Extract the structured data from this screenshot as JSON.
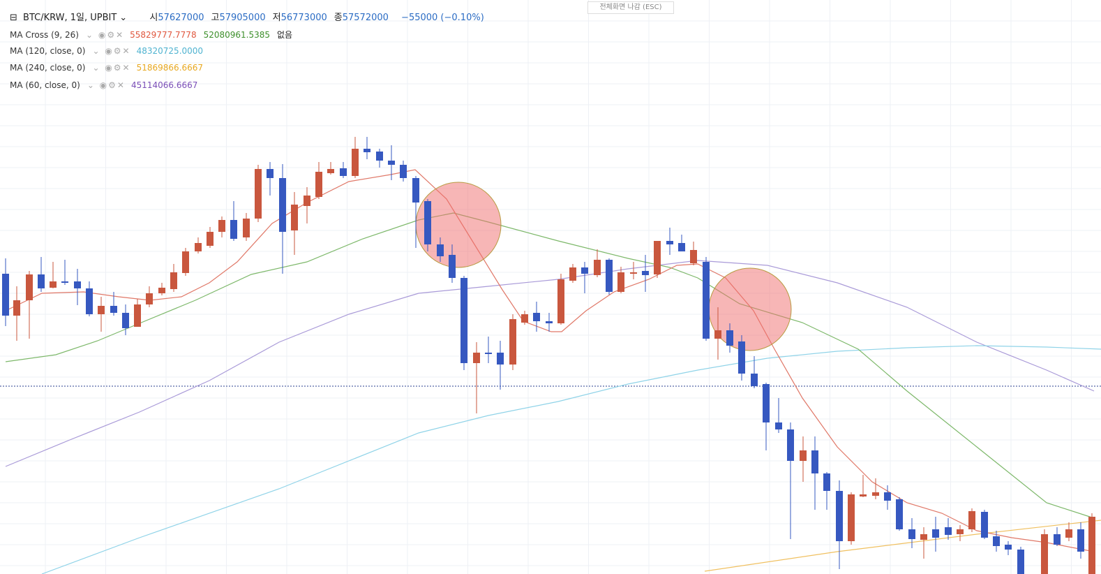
{
  "header": {
    "symbol": "BTC/KRW, 1일, UPBIT",
    "ohlc": [
      {
        "label": "시",
        "value": "57627000"
      },
      {
        "label": "고",
        "value": "57905000"
      },
      {
        "label": "저",
        "value": "56773000"
      },
      {
        "label": "종",
        "value": "57572000"
      }
    ],
    "change": "−55000 (−0.10%)"
  },
  "fullscreen_button": "전체화면 나감 (ESC)",
  "indicators": [
    {
      "name": "MA Cross (9, 26)",
      "values": [
        {
          "text": "55829777.7778",
          "color": "#e0573e"
        },
        {
          "text": "52080961.5385",
          "color": "#3d8f2b"
        },
        {
          "text": "없음",
          "color": "#222222"
        }
      ]
    },
    {
      "name": "MA (120, close, 0)",
      "values": [
        {
          "text": "48320725.0000",
          "color": "#4fb3d0"
        }
      ]
    },
    {
      "name": "MA (240, close, 0)",
      "values": [
        {
          "text": "51869866.6667",
          "color": "#e8a820"
        }
      ]
    },
    {
      "name": "MA (60, close, 0)",
      "values": [
        {
          "text": "45114066.6667",
          "color": "#7b4fb8"
        }
      ]
    }
  ]
}
